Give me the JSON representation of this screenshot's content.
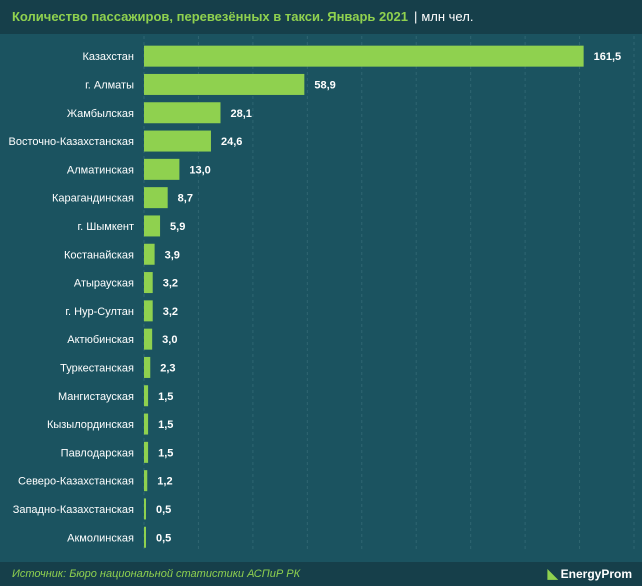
{
  "header": {
    "title": "Количество пассажиров, перевезённых в такси. Январь 2021",
    "separator": "|",
    "unit": "млн чел."
  },
  "footer": {
    "source": "Источник: Бюро национальной статистики АСПиР РК",
    "brand": "EnergyProm",
    "brand_logo": "energyprom-logo"
  },
  "colors": {
    "bar": "#8fd14f",
    "title": "#8fd14f",
    "background": "#1b5360",
    "header": "#163f4a",
    "grid": "#2f6672"
  },
  "chart_data": {
    "type": "bar",
    "orientation": "horizontal",
    "categories": [
      "Казахстан",
      "г. Алматы",
      "Жамбылская",
      "Восточно-Казахстанская",
      "Алматинская",
      "Карагандинская",
      "г. Шымкент",
      "Костанайская",
      "Атырауская",
      "г. Нур-Султан",
      "Актюбинская",
      "Туркестанская",
      "Мангистауская",
      "Кызылординская",
      "Павлодарская",
      "Северо-Казахстанская",
      "Западно-Казахстанская",
      "Акмолинская"
    ],
    "values": [
      161.5,
      58.9,
      28.1,
      24.6,
      13.0,
      8.7,
      5.9,
      3.9,
      3.2,
      3.2,
      3.0,
      2.3,
      1.5,
      1.5,
      1.5,
      1.2,
      0.5,
      0.5
    ],
    "value_labels": [
      "161,5",
      "58,9",
      "28,1",
      "24,6",
      "13,0",
      "8,7",
      "5,9",
      "3,9",
      "3,2",
      "3,2",
      "3,0",
      "2,3",
      "1,5",
      "1,5",
      "1,5",
      "1,2",
      "0,5",
      "0,5"
    ],
    "grid": true,
    "xlim": [
      0,
      180
    ]
  }
}
